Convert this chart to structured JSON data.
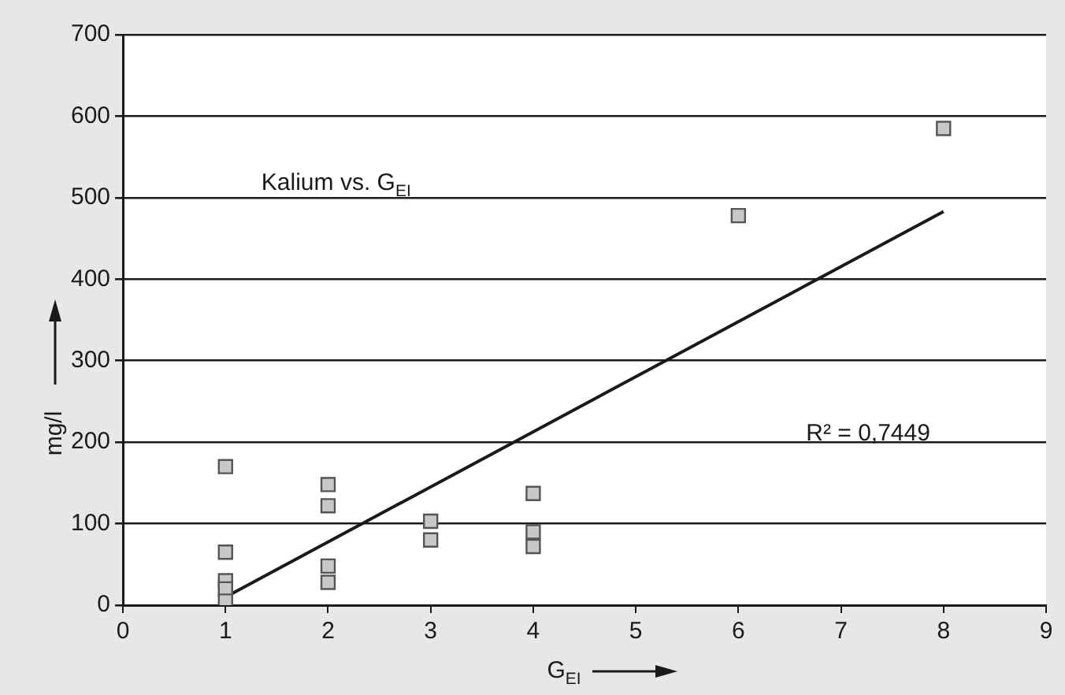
{
  "chart_data": {
    "type": "scatter",
    "xlabel": "G$_{EI}$",
    "ylabel": "mg/l",
    "annotations": [
      "Kalium vs. G$_{EI}$",
      "R² = 0,7449"
    ],
    "series": [
      {
        "type": "scatter",
        "marker": "square",
        "color": "#c8c8c8",
        "x": [
          1,
          1,
          1,
          1,
          1,
          2,
          2,
          2,
          2,
          3,
          3,
          4,
          4,
          4,
          6,
          8
        ],
        "values": [
          170,
          65,
          30,
          20,
          5,
          148,
          122,
          48,
          28,
          103,
          80,
          137,
          90,
          72,
          478,
          585
        ]
      },
      {
        "type": "line",
        "marker": "none",
        "color": "#1a1a1a",
        "x": [
          1,
          8
        ],
        "values": [
          10,
          483
        ]
      }
    ],
    "xlim": [
      0,
      9
    ],
    "xticks": [
      0,
      1,
      2,
      3,
      4,
      5,
      6,
      7,
      8,
      9
    ],
    "ylim": [
      0,
      700
    ],
    "yticks": [
      0,
      100,
      200,
      300,
      400,
      500,
      600,
      700
    ],
    "grid": "y",
    "legend": false
  }
}
